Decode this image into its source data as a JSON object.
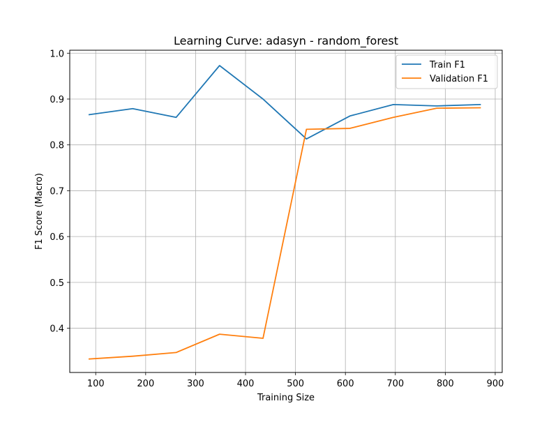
{
  "chart_data": {
    "type": "line",
    "title": "Learning Curve: adasyn - random_forest",
    "xlabel": "Training Size",
    "ylabel": "F1 Score (Macro)",
    "xlim": [
      48,
      914
    ],
    "ylim": [
      0.3035,
      1.0065
    ],
    "xticks": [
      100,
      200,
      300,
      400,
      500,
      600,
      700,
      800,
      900
    ],
    "yticks": [
      0.4,
      0.5,
      0.6,
      0.7,
      0.8,
      0.9,
      1.0
    ],
    "xtick_labels": [
      "100",
      "200",
      "300",
      "400",
      "500",
      "600",
      "700",
      "800",
      "900"
    ],
    "ytick_labels": [
      "0.4",
      "0.5",
      "0.6",
      "0.7",
      "0.8",
      "0.9",
      "1.0"
    ],
    "grid": true,
    "legend_position": "top-right",
    "x": [
      87,
      174,
      261,
      348,
      435,
      522,
      609,
      696,
      783,
      870
    ],
    "series": [
      {
        "name": "Train F1",
        "color": "#1f77b4",
        "values": [
          0.866,
          0.879,
          0.86,
          0.973,
          0.9,
          0.813,
          0.863,
          0.888,
          0.885,
          0.888
        ]
      },
      {
        "name": "Validation F1",
        "color": "#ff7f0e",
        "values": [
          0.333,
          0.339,
          0.347,
          0.387,
          0.378,
          0.834,
          0.836,
          0.86,
          0.88,
          0.881
        ]
      }
    ]
  }
}
